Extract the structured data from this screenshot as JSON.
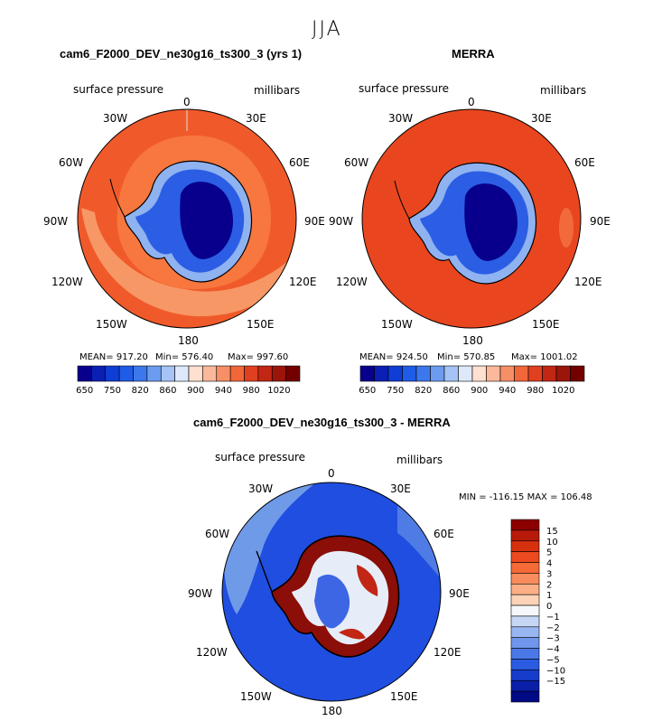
{
  "figure": {
    "season": "JJA"
  },
  "panels": {
    "model": {
      "title": "cam6_F2000_DEV_ne30g16_ts300_3 (yrs 1)",
      "variable": "surface pressure",
      "units": "millibars",
      "stats": {
        "mean": "MEAN= 917.20",
        "min": "Min= 576.40",
        "max": "Max= 997.60"
      }
    },
    "obs": {
      "title": "MERRA",
      "variable": "surface pressure",
      "units": "millibars",
      "stats": {
        "mean": "MEAN= 924.50",
        "min": "Min= 570.85",
        "max": "Max= 1001.02"
      }
    },
    "diff": {
      "title": "cam6_F2000_DEV_ne30g16_ts300_3 - MERRA",
      "variable": "surface pressure",
      "units": "millibars",
      "minmax": "MIN = -116.15 MAX = 106.48"
    }
  },
  "longitude_labels": [
    "0",
    "30E",
    "60E",
    "90E",
    "120E",
    "150E",
    "180",
    "150W",
    "120W",
    "90W",
    "60W",
    "30W"
  ],
  "colorbars": {
    "main": {
      "tick_labels": [
        "650",
        "750",
        "820",
        "860",
        "900",
        "940",
        "980",
        "1020"
      ],
      "colors": [
        "#08008c",
        "#0a1fb3",
        "#0f3ed6",
        "#1f5ce8",
        "#3c78ec",
        "#6b9cf0",
        "#a5c3f5",
        "#dde9fb",
        "#fde0cf",
        "#fbb89a",
        "#f78f66",
        "#f2673a",
        "#e0401f",
        "#c22614",
        "#9c150b",
        "#720000"
      ]
    },
    "diff": {
      "tick_labels": [
        "15",
        "10",
        "5",
        "4",
        "3",
        "2",
        "1",
        "0",
        "−1",
        "−2",
        "−3",
        "−4",
        "−5",
        "−10",
        "−15"
      ],
      "colors": [
        "#8c0000",
        "#b81a0a",
        "#d6300f",
        "#ec4a1e",
        "#f56a36",
        "#f88c5c",
        "#fbaf86",
        "#fdd3b8",
        "#f5f7fb",
        "#c6d7f6",
        "#98b6f1",
        "#6f96ec",
        "#4a78e6",
        "#2a5be0",
        "#163ccc",
        "#0a1fa8",
        "#000a84"
      ]
    }
  },
  "map_colors": {
    "ocean_model": "#f05a2a",
    "ocean_model_inner": "#f7773e",
    "ocean_model_outer": "#f79765",
    "ocean_obs": "#e9461f",
    "diff_background": "#1f4ee0",
    "diff_light": "#6f9ae8",
    "ice_core": "#08008c",
    "ice_mid": "#2b5ee4",
    "ice_edge": "#8fb2f0"
  }
}
